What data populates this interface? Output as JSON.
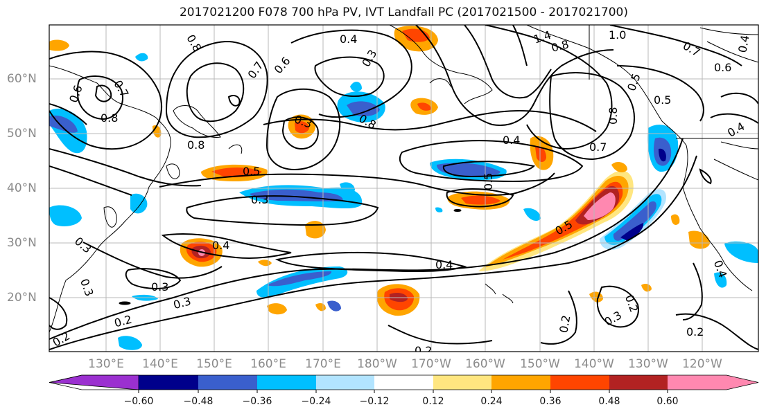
{
  "title": "2017021200 F078 700 hPa PV, IVT Landfall PC (2017021500 - 2017021700)",
  "map": {
    "lat_labels": [
      "60°N",
      "50°N",
      "40°N",
      "30°N",
      "20°N"
    ],
    "lon_labels": [
      "130°E",
      "140°E",
      "150°E",
      "160°E",
      "170°E",
      "180°W",
      "170°W",
      "160°W",
      "150°W",
      "140°W",
      "130°W",
      "120°W"
    ],
    "contour_labels": [
      "0.8",
      "0.4",
      "1.4",
      "1.0",
      "0.8",
      "0.7",
      "0.6",
      "0.3",
      "0.8",
      "0.7",
      "0.8",
      "0.5",
      "0.3",
      "0.6",
      "0.8",
      "0.6",
      "0.7",
      "0.5",
      "0.4",
      "0.7",
      "0.8",
      "0.5",
      "0.4",
      "0.3",
      "0.5",
      "0.4",
      "0.5",
      "0.3",
      "0.3",
      "0.4",
      "0.3",
      "0.2",
      "0.4",
      "0.2",
      "0.3",
      "0.2",
      "0.2",
      "0.2",
      "0.2",
      "0.4",
      "0.3"
    ]
  },
  "colorbar": {
    "ticks": [
      "−0.60",
      "−0.48",
      "−0.36",
      "−0.24",
      "−0.12",
      "0.12",
      "0.24",
      "0.36",
      "0.48",
      "0.60"
    ],
    "colors": [
      "#9b30d0",
      "#00008b",
      "#3a5fcd",
      "#00bfff",
      "#b2e4ff",
      "#ffffff",
      "#ffe680",
      "#ffa500",
      "#ff4500",
      "#b22222",
      "#ff88b0"
    ]
  }
}
